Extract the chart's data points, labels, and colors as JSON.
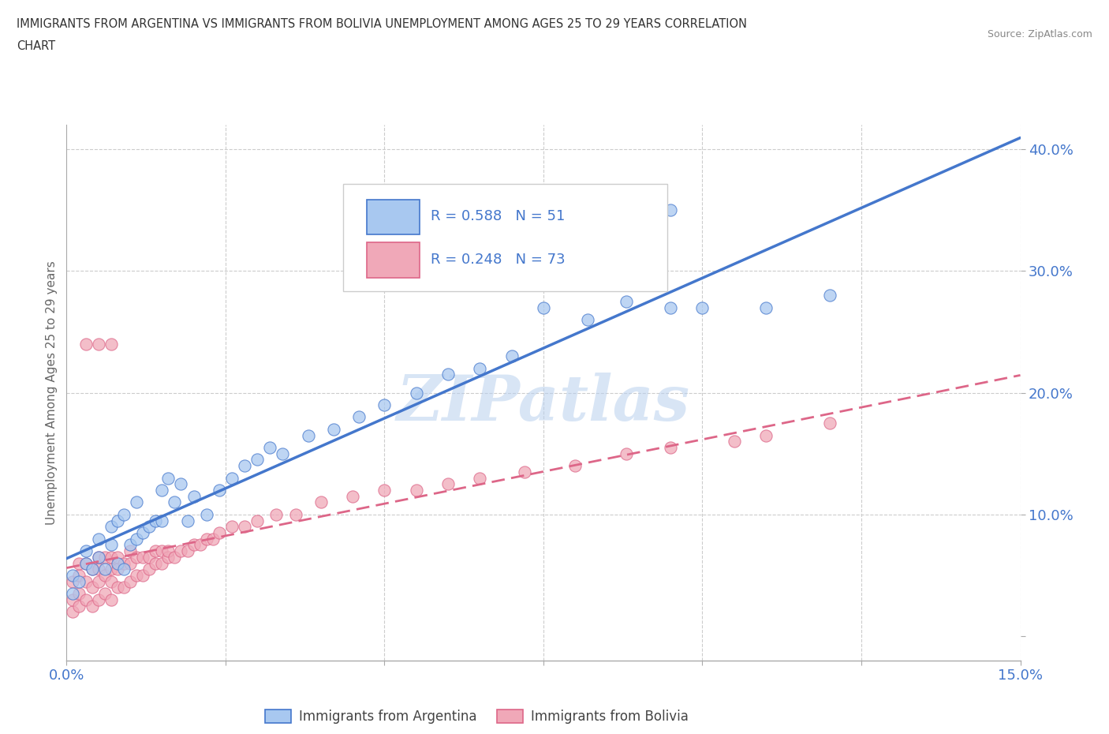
{
  "title_line1": "IMMIGRANTS FROM ARGENTINA VS IMMIGRANTS FROM BOLIVIA UNEMPLOYMENT AMONG AGES 25 TO 29 YEARS CORRELATION",
  "title_line2": "CHART",
  "source": "Source: ZipAtlas.com",
  "ylabel": "Unemployment Among Ages 25 to 29 years",
  "xlim": [
    0.0,
    0.15
  ],
  "ylim": [
    -0.02,
    0.42
  ],
  "xticks": [
    0.0,
    0.025,
    0.05,
    0.075,
    0.1,
    0.125,
    0.15
  ],
  "xtick_labels": [
    "0.0%",
    "",
    "",
    "",
    "",
    "",
    "15.0%"
  ],
  "yticks": [
    0.0,
    0.1,
    0.2,
    0.3,
    0.4
  ],
  "ytick_labels": [
    "",
    "10.0%",
    "20.0%",
    "30.0%",
    "40.0%"
  ],
  "color_argentina": "#a8c8f0",
  "color_bolivia": "#f0a8b8",
  "line_color_argentina": "#4477cc",
  "line_color_bolivia": "#dd6688",
  "R_argentina": 0.588,
  "N_argentina": 51,
  "R_bolivia": 0.248,
  "N_bolivia": 73,
  "argentina_x": [
    0.001,
    0.001,
    0.002,
    0.003,
    0.003,
    0.004,
    0.005,
    0.005,
    0.006,
    0.007,
    0.007,
    0.008,
    0.008,
    0.009,
    0.009,
    0.01,
    0.011,
    0.011,
    0.012,
    0.013,
    0.014,
    0.015,
    0.015,
    0.016,
    0.017,
    0.018,
    0.019,
    0.02,
    0.022,
    0.024,
    0.026,
    0.028,
    0.03,
    0.032,
    0.034,
    0.038,
    0.042,
    0.046,
    0.05,
    0.055,
    0.06,
    0.065,
    0.07,
    0.075,
    0.082,
    0.088,
    0.095,
    0.1,
    0.11,
    0.12,
    0.095
  ],
  "argentina_y": [
    0.035,
    0.05,
    0.045,
    0.06,
    0.07,
    0.055,
    0.065,
    0.08,
    0.055,
    0.075,
    0.09,
    0.06,
    0.095,
    0.055,
    0.1,
    0.075,
    0.08,
    0.11,
    0.085,
    0.09,
    0.095,
    0.095,
    0.12,
    0.13,
    0.11,
    0.125,
    0.095,
    0.115,
    0.1,
    0.12,
    0.13,
    0.14,
    0.145,
    0.155,
    0.15,
    0.165,
    0.17,
    0.18,
    0.19,
    0.2,
    0.215,
    0.22,
    0.23,
    0.27,
    0.26,
    0.275,
    0.27,
    0.27,
    0.27,
    0.28,
    0.35
  ],
  "bolivia_x": [
    0.001,
    0.001,
    0.001,
    0.002,
    0.002,
    0.002,
    0.002,
    0.003,
    0.003,
    0.003,
    0.004,
    0.004,
    0.004,
    0.005,
    0.005,
    0.005,
    0.005,
    0.006,
    0.006,
    0.006,
    0.007,
    0.007,
    0.007,
    0.007,
    0.008,
    0.008,
    0.008,
    0.009,
    0.009,
    0.01,
    0.01,
    0.01,
    0.011,
    0.011,
    0.012,
    0.012,
    0.013,
    0.013,
    0.014,
    0.014,
    0.015,
    0.015,
    0.016,
    0.016,
    0.017,
    0.018,
    0.019,
    0.02,
    0.021,
    0.022,
    0.023,
    0.024,
    0.026,
    0.028,
    0.03,
    0.033,
    0.036,
    0.04,
    0.045,
    0.05,
    0.055,
    0.06,
    0.065,
    0.072,
    0.08,
    0.088,
    0.095,
    0.105,
    0.11,
    0.12,
    0.003,
    0.005,
    0.007
  ],
  "bolivia_y": [
    0.02,
    0.03,
    0.045,
    0.025,
    0.035,
    0.05,
    0.06,
    0.03,
    0.045,
    0.06,
    0.025,
    0.04,
    0.055,
    0.03,
    0.045,
    0.055,
    0.065,
    0.035,
    0.05,
    0.065,
    0.03,
    0.045,
    0.055,
    0.065,
    0.04,
    0.055,
    0.065,
    0.04,
    0.06,
    0.045,
    0.06,
    0.07,
    0.05,
    0.065,
    0.05,
    0.065,
    0.055,
    0.065,
    0.06,
    0.07,
    0.06,
    0.07,
    0.065,
    0.07,
    0.065,
    0.07,
    0.07,
    0.075,
    0.075,
    0.08,
    0.08,
    0.085,
    0.09,
    0.09,
    0.095,
    0.1,
    0.1,
    0.11,
    0.115,
    0.12,
    0.12,
    0.125,
    0.13,
    0.135,
    0.14,
    0.15,
    0.155,
    0.16,
    0.165,
    0.175,
    0.24,
    0.24,
    0.24
  ],
  "watermark": "ZIPatlas",
  "background_color": "#ffffff",
  "grid_color": "#cccccc",
  "title_color": "#555555",
  "tick_color_blue": "#4477cc",
  "legend_label_argentina": "Immigrants from Argentina",
  "legend_label_bolivia": "Immigrants from Bolivia"
}
